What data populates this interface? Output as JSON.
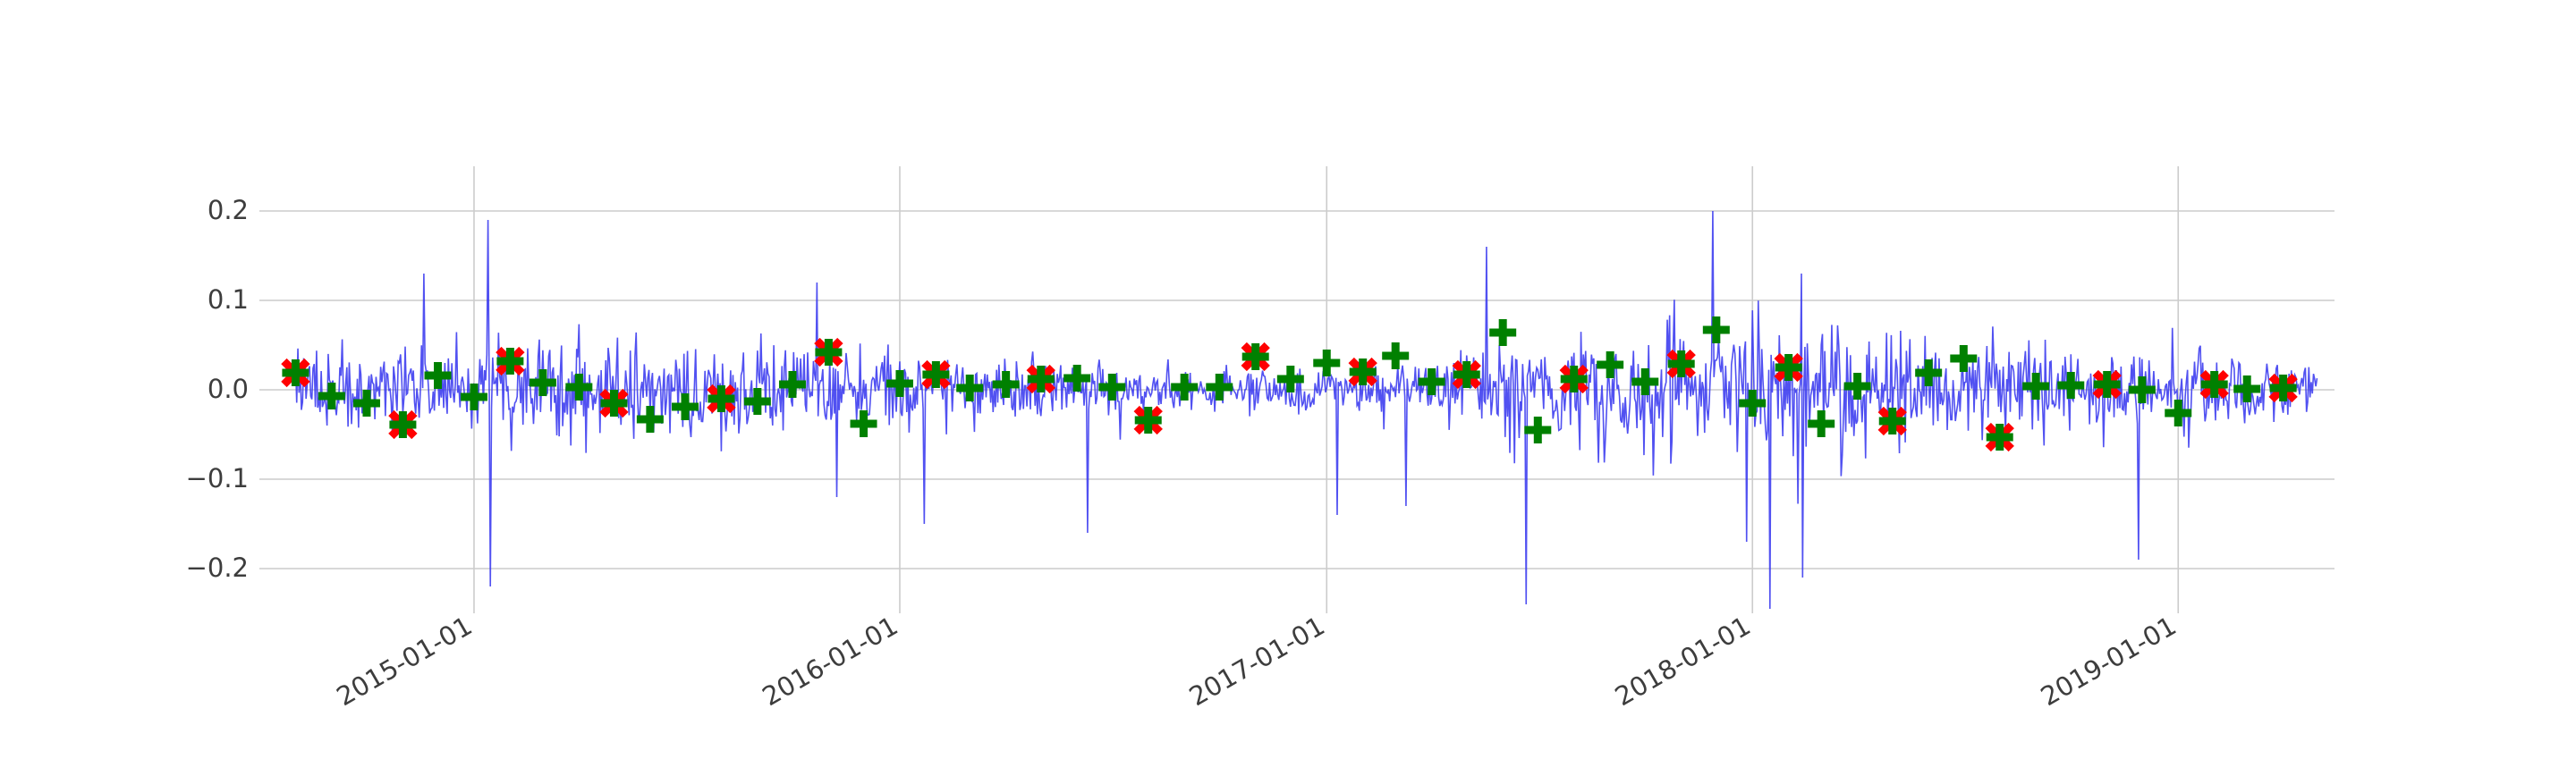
{
  "chart_data": {
    "type": "line",
    "title": "",
    "xlabel": "",
    "ylabel": "",
    "xlim": [
      "2014-07-01",
      "2019-05-15"
    ],
    "ylim": [
      -0.25,
      0.25
    ],
    "grid": true,
    "x_ticks": [
      "2015-01-01",
      "2016-01-01",
      "2017-01-01",
      "2018-01-01",
      "2019-01-01"
    ],
    "y_ticks": [
      0.2,
      0.1,
      0.0,
      -0.1,
      -0.2
    ],
    "y_tick_labels": [
      "0.2",
      "0.1",
      "0.0",
      "−0.1",
      "−0.2"
    ],
    "series": [
      {
        "role": "daily-returns-line",
        "color": "#3333ee",
        "start": "2014-08-01",
        "end": "2019-04-30",
        "mean": 0.0,
        "std": 0.03,
        "spikes": [
          [
            "2014-11-19",
            0.13
          ],
          [
            "2015-01-13",
            0.19
          ],
          [
            "2015-01-15",
            -0.22
          ],
          [
            "2015-10-22",
            0.12
          ],
          [
            "2015-11-08",
            -0.12
          ],
          [
            "2016-01-22",
            -0.15
          ],
          [
            "2016-06-10",
            -0.16
          ],
          [
            "2017-05-18",
            0.16
          ],
          [
            "2017-06-21",
            -0.24
          ],
          [
            "2017-11-28",
            0.2
          ],
          [
            "2018-01-16",
            -0.25
          ],
          [
            "2018-02-12",
            0.13
          ],
          [
            "2018-02-13",
            -0.21
          ],
          [
            "2018-11-28",
            -0.19
          ],
          [
            "2017-01-10",
            -0.14
          ],
          [
            "2017-03-10",
            -0.13
          ],
          [
            "2017-12-27",
            -0.17
          ]
        ]
      },
      {
        "role": "monthly-mean-plus",
        "color": "#008000",
        "marker": "plus",
        "points": [
          [
            "2014-08-01",
            0.019
          ],
          [
            "2014-09-01",
            -0.007
          ],
          [
            "2014-10-01",
            -0.015
          ],
          [
            "2014-11-01",
            -0.039
          ],
          [
            "2014-12-01",
            0.016
          ],
          [
            "2015-01-01",
            -0.008
          ],
          [
            "2015-02-01",
            0.032
          ],
          [
            "2015-03-01",
            0.008
          ],
          [
            "2015-04-01",
            0.003
          ],
          [
            "2015-05-01",
            -0.015
          ],
          [
            "2015-06-01",
            -0.033
          ],
          [
            "2015-07-01",
            -0.019
          ],
          [
            "2015-08-01",
            -0.01
          ],
          [
            "2015-09-01",
            -0.013
          ],
          [
            "2015-10-01",
            0.006
          ],
          [
            "2015-11-01",
            0.042
          ],
          [
            "2015-12-01",
            -0.038
          ],
          [
            "2016-01-01",
            0.007
          ],
          [
            "2016-02-01",
            0.017
          ],
          [
            "2016-03-01",
            0.002
          ],
          [
            "2016-04-01",
            0.006
          ],
          [
            "2016-05-01",
            0.012
          ],
          [
            "2016-06-01",
            0.013
          ],
          [
            "2016-07-01",
            0.003
          ],
          [
            "2016-08-01",
            -0.034
          ],
          [
            "2016-09-01",
            0.003
          ],
          [
            "2016-10-01",
            0.003
          ],
          [
            "2016-11-01",
            0.037
          ],
          [
            "2016-12-01",
            0.012
          ],
          [
            "2017-01-01",
            0.03
          ],
          [
            "2017-02-01",
            0.02
          ],
          [
            "2017-03-01",
            0.038
          ],
          [
            "2017-04-01",
            0.009
          ],
          [
            "2017-05-01",
            0.017
          ],
          [
            "2017-06-01",
            0.064
          ],
          [
            "2017-07-01",
            -0.045
          ],
          [
            "2017-08-01",
            0.012
          ],
          [
            "2017-09-01",
            0.028
          ],
          [
            "2017-10-01",
            0.009
          ],
          [
            "2017-11-01",
            0.029
          ],
          [
            "2017-12-01",
            0.067
          ],
          [
            "2018-01-01",
            -0.015
          ],
          [
            "2018-02-01",
            0.025
          ],
          [
            "2018-03-01",
            -0.038
          ],
          [
            "2018-04-01",
            0.004
          ],
          [
            "2018-05-01",
            -0.035
          ],
          [
            "2018-06-01",
            0.019
          ],
          [
            "2018-07-01",
            0.035
          ],
          [
            "2018-08-01",
            -0.053
          ],
          [
            "2018-09-01",
            0.004
          ],
          [
            "2018-10-01",
            0.005
          ],
          [
            "2018-11-01",
            0.006
          ],
          [
            "2018-12-01",
            0.0
          ],
          [
            "2019-01-01",
            -0.026
          ],
          [
            "2019-02-01",
            0.006
          ],
          [
            "2019-03-01",
            0.001
          ],
          [
            "2019-04-01",
            0.002
          ]
        ]
      },
      {
        "role": "selected-months-x",
        "color": "#ff0000",
        "marker": "x",
        "points": [
          [
            "2014-08-01",
            0.019
          ],
          [
            "2014-11-01",
            -0.039
          ],
          [
            "2015-02-01",
            0.032
          ],
          [
            "2015-05-01",
            -0.015
          ],
          [
            "2015-08-01",
            -0.01
          ],
          [
            "2015-11-01",
            0.042
          ],
          [
            "2016-02-01",
            0.017
          ],
          [
            "2016-05-01",
            0.012
          ],
          [
            "2016-08-01",
            -0.034
          ],
          [
            "2016-11-01",
            0.037
          ],
          [
            "2017-02-01",
            0.02
          ],
          [
            "2017-05-01",
            0.017
          ],
          [
            "2017-08-01",
            0.012
          ],
          [
            "2017-11-01",
            0.029
          ],
          [
            "2018-02-01",
            0.025
          ],
          [
            "2018-05-01",
            -0.035
          ],
          [
            "2018-08-01",
            -0.053
          ],
          [
            "2018-11-01",
            0.006
          ],
          [
            "2019-02-01",
            0.006
          ],
          [
            "2019-04-01",
            0.002
          ]
        ]
      }
    ]
  }
}
